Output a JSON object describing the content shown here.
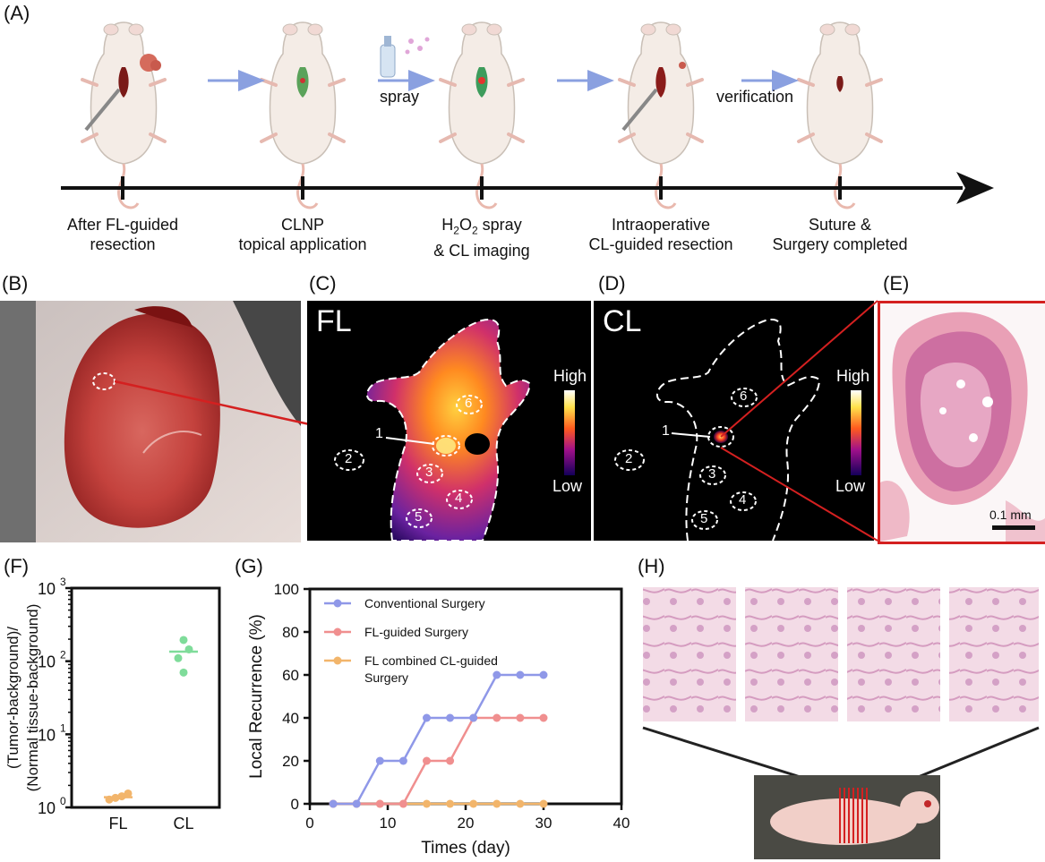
{
  "panel_labels": {
    "A": "(A)",
    "B": "(B)",
    "C": "(C)",
    "D": "(D)",
    "E": "(E)",
    "F": "(F)",
    "G": "(G)",
    "H": "(H)"
  },
  "timeline": {
    "spray_label": "spray",
    "verification_label": "verification",
    "steps": [
      {
        "line1": "After FL-guided",
        "line2": "resection"
      },
      {
        "line1": "CLNP",
        "line2": "topical application"
      },
      {
        "line1": "H2O2 spray",
        "line2": "& CL imaging"
      },
      {
        "line1": "Intraoperative",
        "line2": "CL-guided resection"
      },
      {
        "line1": "Suture &",
        "line2": "Surgery completed"
      }
    ]
  },
  "fl_panel": {
    "title": "FL",
    "high": "High",
    "low": "Low",
    "regions": [
      "1",
      "2",
      "3",
      "4",
      "5",
      "6"
    ]
  },
  "cl_panel": {
    "title": "CL",
    "high": "High",
    "low": "Low",
    "regions": [
      "1",
      "2",
      "3",
      "4",
      "5",
      "6"
    ]
  },
  "histology": {
    "scale_bar": "0.1 mm"
  },
  "colors": {
    "conventional": "#8f98e8",
    "fl_guided": "#f08f8f",
    "fl_cl": "#f2b56b",
    "cl_points": "#7fdc9a",
    "fl_points": "#f2b56b",
    "arrow": "#8aa0e0",
    "red_frame": "#d42020"
  },
  "chart_data": [
    {
      "panel": "F",
      "type": "scatter",
      "ylabel_line1": "(Tumor-background)/",
      "ylabel_line2": "(Normal tissue-background)",
      "yscale": "log",
      "ylim": [
        1,
        1000
      ],
      "y_ticks": [
        "10",
        "10",
        "10",
        "10"
      ],
      "y_tick_exponents": [
        "0",
        "1",
        "2",
        "3"
      ],
      "categories": [
        "FL",
        "CL"
      ],
      "series": [
        {
          "category": "FL",
          "values": [
            1.28,
            1.35,
            1.42,
            1.55
          ],
          "mean": 1.38
        },
        {
          "category": "CL",
          "values": [
            70,
            110,
            145,
            195
          ],
          "mean": 135
        }
      ]
    },
    {
      "panel": "G",
      "type": "line",
      "xlabel": "Times (day)",
      "ylabel": "Local Recurrence (%)",
      "xlim": [
        0,
        40
      ],
      "ylim": [
        0,
        100
      ],
      "x_ticks": [
        "0",
        "10",
        "20",
        "30",
        "40"
      ],
      "y_ticks": [
        "0",
        "20",
        "40",
        "60",
        "80",
        "100"
      ],
      "legend_position": "top-left",
      "series": [
        {
          "name": "Conventional Surgery",
          "x": [
            3,
            6,
            9,
            12,
            15,
            18,
            21,
            24,
            27,
            30
          ],
          "y": [
            0,
            0,
            20,
            20,
            40,
            40,
            40,
            60,
            60,
            60
          ]
        },
        {
          "name": "FL-guided Surgery",
          "x": [
            3,
            6,
            9,
            12,
            15,
            18,
            21,
            24,
            27,
            30
          ],
          "y": [
            0,
            0,
            0,
            0,
            20,
            20,
            40,
            40,
            40,
            40
          ]
        },
        {
          "name_line1": "FL combined CL-guided",
          "name_line2": "Surgery",
          "x": [
            3,
            6,
            9,
            12,
            15,
            18,
            21,
            24,
            27,
            30
          ],
          "y": [
            0,
            0,
            0,
            0,
            0,
            0,
            0,
            0,
            0,
            0
          ]
        }
      ]
    }
  ]
}
